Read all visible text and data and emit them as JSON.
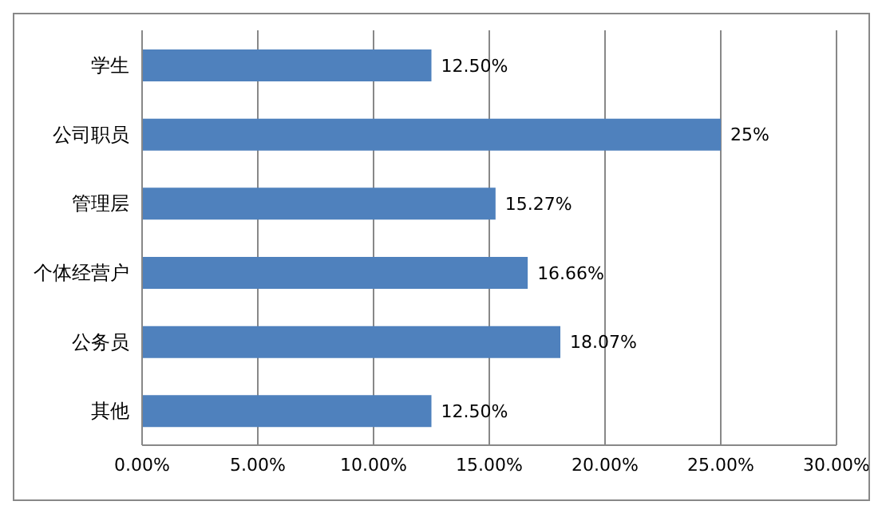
{
  "chart_data": {
    "type": "bar",
    "orientation": "horizontal",
    "categories": [
      "学生",
      "公司职员",
      "管理层",
      "个体经营户",
      "公务员",
      "其他"
    ],
    "values": [
      12.5,
      25,
      15.27,
      16.66,
      18.07,
      12.5
    ],
    "value_labels": [
      "12.50%",
      "25%",
      "15.27%",
      "16.66%",
      "18.07%",
      "12.50%"
    ],
    "color": "#4f81bd",
    "xlim": [
      0,
      30
    ],
    "xticks": [
      {
        "value": 0,
        "label": "0.00%"
      },
      {
        "value": 5,
        "label": "5.00%"
      },
      {
        "value": 10,
        "label": "10.00%"
      },
      {
        "value": 15,
        "label": "15.00%"
      },
      {
        "value": 20,
        "label": "20.00%"
      },
      {
        "value": 25,
        "label": "25.00%"
      },
      {
        "value": 30,
        "label": "30.00%"
      }
    ],
    "grid": "x",
    "legend": false
  }
}
